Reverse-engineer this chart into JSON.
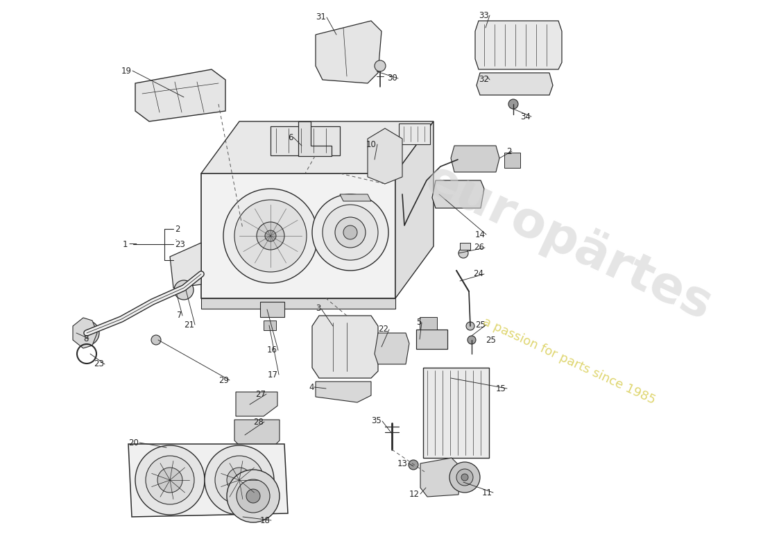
{
  "bg_color": "#ffffff",
  "line_color": "#2a2a2a",
  "watermark1": "europärtes",
  "watermark2": "a passion for parts since 1985",
  "figsize": [
    11.0,
    8.0
  ],
  "dpi": 100
}
